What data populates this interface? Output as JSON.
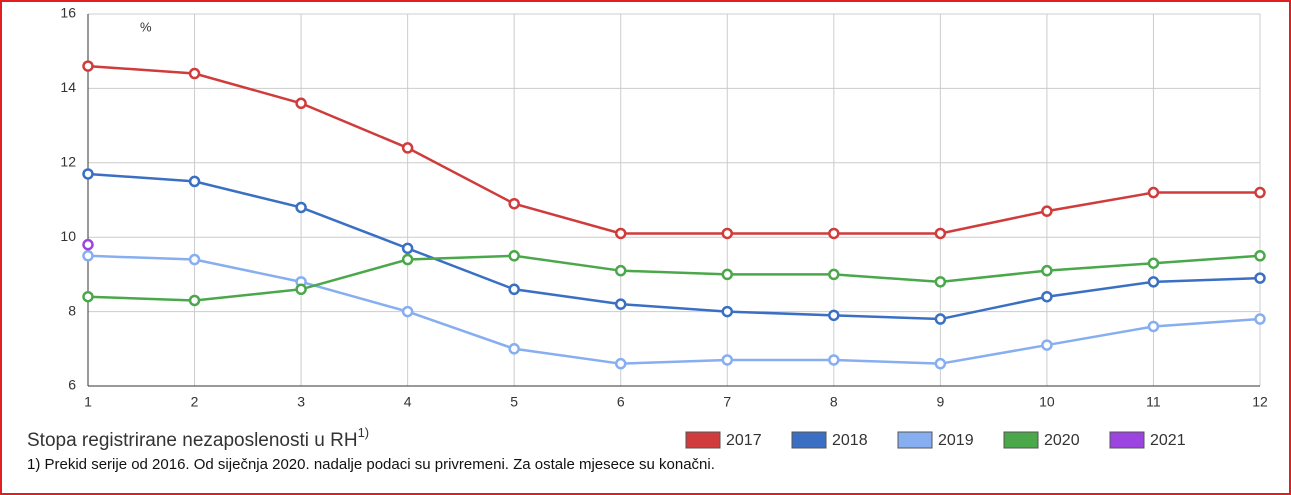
{
  "chart_data": {
    "type": "line",
    "unit_label": "%",
    "title": "Stopa registrirane nezaposlenosti u RH",
    "title_sup": "1)",
    "footnote": "1) Prekid serije od 2016. Od siječnja 2020. nadalje podaci su privremeni. Za ostale mjesece su konačni.",
    "x": [
      1,
      2,
      3,
      4,
      5,
      6,
      7,
      8,
      9,
      10,
      11,
      12
    ],
    "xlim": [
      1,
      12
    ],
    "xticks": [
      1,
      2,
      3,
      4,
      5,
      6,
      7,
      8,
      9,
      10,
      11,
      12
    ],
    "ylim": [
      6,
      16
    ],
    "yticks": [
      6,
      8,
      10,
      12,
      14,
      16
    ],
    "grid": true,
    "legend": "bottom",
    "series": [
      {
        "name": "2017",
        "color": "#d03b3b",
        "values": [
          14.6,
          14.4,
          13.6,
          12.4,
          10.9,
          10.1,
          10.1,
          10.1,
          10.1,
          10.7,
          11.2,
          11.2
        ]
      },
      {
        "name": "2018",
        "color": "#3a6fc4",
        "values": [
          11.7,
          11.5,
          10.8,
          9.7,
          8.6,
          8.2,
          8.0,
          7.9,
          7.8,
          8.4,
          8.8,
          8.9
        ]
      },
      {
        "name": "2019",
        "color": "#86aef0",
        "values": [
          9.5,
          9.4,
          8.8,
          8.0,
          7.0,
          6.6,
          6.7,
          6.7,
          6.6,
          7.1,
          7.6,
          7.8
        ]
      },
      {
        "name": "2020",
        "color": "#4aa84a",
        "values": [
          8.4,
          8.3,
          8.6,
          9.4,
          9.5,
          9.1,
          9.0,
          9.0,
          8.8,
          9.1,
          9.3,
          9.5
        ]
      },
      {
        "name": "2021",
        "color": "#9b44e0",
        "values": [
          9.8,
          null,
          null,
          null,
          null,
          null,
          null,
          null,
          null,
          null,
          null,
          null
        ]
      }
    ]
  }
}
